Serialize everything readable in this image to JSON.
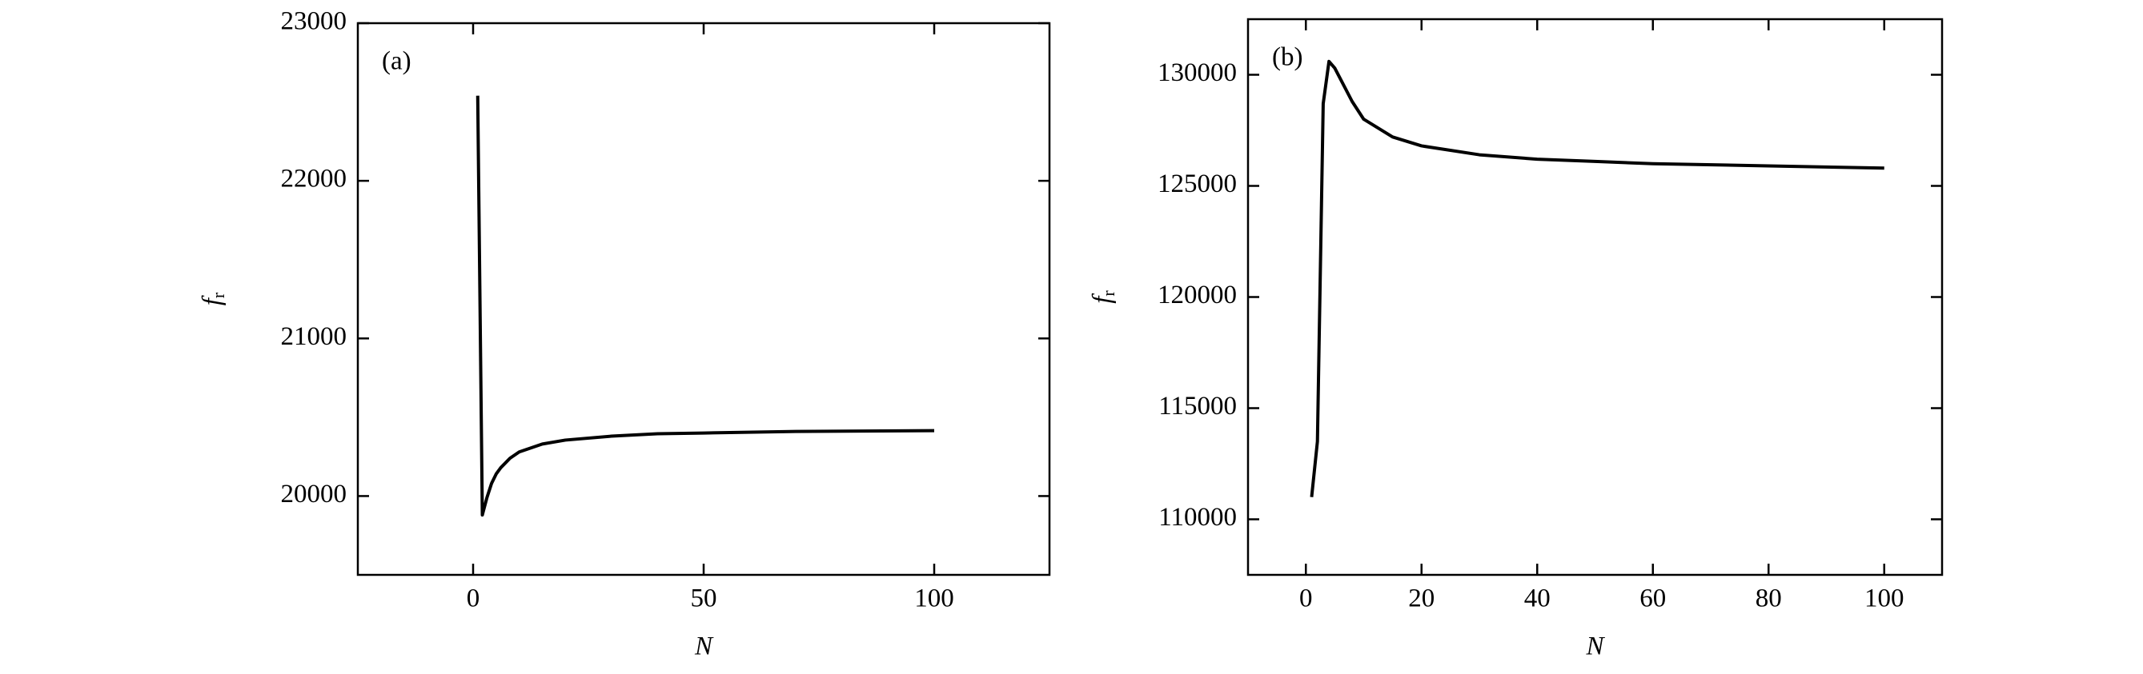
{
  "chart_data": [
    {
      "type": "line",
      "panel_label": "(a)",
      "xlabel": "N",
      "ylabel": "f",
      "ylabel_subscript": "r",
      "x": [
        1,
        2,
        3,
        4,
        5,
        6,
        8,
        10,
        15,
        20,
        30,
        40,
        50,
        70,
        100
      ],
      "series": [
        {
          "color": "#000000",
          "values": [
            22540,
            19880,
            19990,
            20080,
            20140,
            20180,
            20240,
            20280,
            20330,
            20355,
            20380,
            20395,
            20400,
            20410,
            20415
          ]
        }
      ],
      "xlim": [
        -25,
        125
      ],
      "xticks": [
        0,
        50,
        100
      ],
      "ylim": [
        19500,
        23000
      ],
      "yticks": [
        20000,
        21000,
        22000,
        23000
      ]
    },
    {
      "type": "line",
      "panel_label": "(b)",
      "xlabel": "N",
      "ylabel": "f",
      "ylabel_subscript": "r",
      "x": [
        1,
        2,
        3,
        4,
        5,
        6,
        8,
        10,
        15,
        20,
        30,
        40,
        50,
        60,
        80,
        100
      ],
      "series": [
        {
          "color": "#000000",
          "values": [
            111000,
            113500,
            128700,
            130600,
            130300,
            129800,
            128800,
            128000,
            127200,
            126800,
            126400,
            126200,
            126100,
            126000,
            125900,
            125800
          ]
        }
      ],
      "xlim": [
        -10,
        110
      ],
      "xticks": [
        0,
        20,
        40,
        60,
        80,
        100
      ],
      "ylim": [
        107500,
        132500
      ],
      "yticks": [
        110000,
        115000,
        120000,
        125000,
        130000
      ]
    }
  ]
}
